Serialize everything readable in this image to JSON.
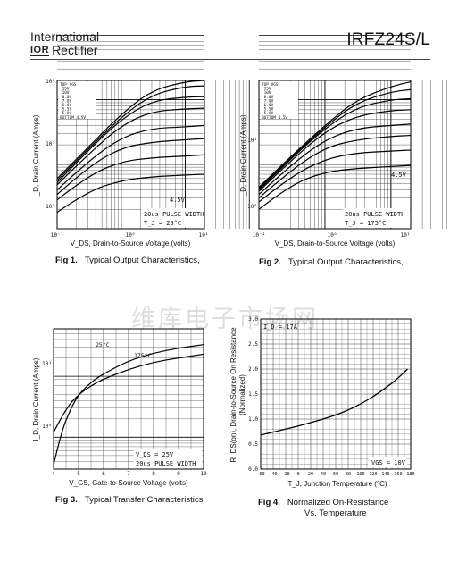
{
  "header": {
    "company_line1": "International",
    "company_logo": "IOR",
    "company_line2": "Rectifier",
    "part_number": "IRFZ24S/L"
  },
  "watermark": "维库电子市场网",
  "figures": {
    "fig1": {
      "num": "Fig 1.",
      "caption": "Typical Output Characteristics,",
      "ylabel": "I_D, Drain Current (Amps)",
      "xlabel": "V_DS, Drain-to-Source Voltage (volts)",
      "legend_title": [
        "TOP",
        "BOTTOM"
      ],
      "legend_values": [
        "VGS",
        "15V",
        "10V",
        "8.0V",
        "7.0V",
        "6.0V",
        "5.5V",
        "5.0V",
        "4.5V"
      ],
      "note1": "20us PULSE WIDTH",
      "note2": "T_J = 25°C",
      "curve_label": "4.5V",
      "xticks": [
        "10⁻¹",
        "10⁰",
        "10¹"
      ],
      "yticks": [
        "10⁰",
        "10¹",
        "10²"
      ]
    },
    "fig2": {
      "num": "Fig 2.",
      "caption": "Typical Output Characteristics,",
      "ylabel": "I_D, Drain Current (Amps)",
      "xlabel": "V_DS, Drain-to-Source Voltage (volts)",
      "legend_title": [
        "TOP",
        "BOTTOM"
      ],
      "legend_values": [
        "VGS",
        "15V",
        "10V",
        "8.0V",
        "7.0V",
        "6.0V",
        "5.5V",
        "5.0V",
        "4.5V"
      ],
      "note1": "20us PULSE WIDTH",
      "note2": "T_J = 175°C",
      "curve_label": "4.5V",
      "xticks": [
        "10⁻¹",
        "10⁰",
        "10¹"
      ],
      "yticks": [
        "10⁰",
        "10¹"
      ]
    },
    "fig3": {
      "num": "Fig 3.",
      "caption": "Typical Transfer Characteristics",
      "ylabel": "I_D, Drain Current (Amps)",
      "xlabel": "V_GS, Gate-to-Source Voltage (volts)",
      "note1": "V_DS = 25V",
      "note2": "20us PULSE WIDTH",
      "label_25": "25°C",
      "label_175": "175°C",
      "xticks": [
        "4",
        "5",
        "6",
        "7",
        "8",
        "9",
        "10"
      ],
      "yticks": [
        "10⁰",
        "10¹"
      ]
    },
    "fig4": {
      "num": "Fig 4.",
      "caption_line1": "Normalized On-Resistance",
      "caption_line2": "Vs. Temperature",
      "ylabel1": "R_DS(on), Drain-to-Source On Resistance",
      "ylabel2": "(Normalized)",
      "xlabel": "T_J, Junction Temperature (°C)",
      "id_note": "I_D = 17A",
      "vgs_note": "VGS = 10V",
      "xticks": [
        "-60",
        "-40",
        "-20",
        "0",
        "20",
        "40",
        "60",
        "80",
        "100",
        "120",
        "140",
        "160",
        "180"
      ],
      "yticks": [
        "0.0",
        "0.5",
        "1.0",
        "1.5",
        "2.0",
        "2.5",
        "3.0"
      ]
    }
  },
  "chart_data": [
    {
      "type": "line",
      "figure": "Fig 1.",
      "xscale": "log",
      "yscale": "log",
      "xlim": [
        0.1,
        20
      ],
      "ylim": [
        0.5,
        100
      ],
      "series": [
        {
          "name": "15V",
          "x": [
            0.1,
            0.3,
            1,
            3,
            10,
            20
          ],
          "y": [
            3,
            9,
            30,
            70,
            95,
            100
          ]
        },
        {
          "name": "10V",
          "x": [
            0.1,
            0.3,
            1,
            3,
            10,
            20
          ],
          "y": [
            2.8,
            8.5,
            27,
            60,
            80,
            82
          ]
        },
        {
          "name": "8.0V",
          "x": [
            0.1,
            0.3,
            1,
            3,
            10,
            20
          ],
          "y": [
            2.6,
            8,
            25,
            48,
            55,
            56
          ]
        },
        {
          "name": "7.0V",
          "x": [
            0.1,
            0.3,
            1,
            3,
            10,
            20
          ],
          "y": [
            2.4,
            7,
            20,
            33,
            36,
            37
          ]
        },
        {
          "name": "6.0V",
          "x": [
            0.1,
            0.3,
            1,
            3,
            10,
            20
          ],
          "y": [
            2,
            5.5,
            13,
            18,
            19,
            20
          ]
        },
        {
          "name": "5.5V",
          "x": [
            0.1,
            0.3,
            1,
            3,
            10,
            20
          ],
          "y": [
            1.7,
            4.5,
            9,
            11,
            12,
            12.5
          ]
        },
        {
          "name": "5.0V",
          "x": [
            0.1,
            0.3,
            1,
            3,
            10,
            20
          ],
          "y": [
            1.4,
            3.3,
            5.5,
            6.3,
            6.7,
            7
          ]
        },
        {
          "name": "4.5V",
          "x": [
            0.1,
            0.3,
            1,
            3,
            10,
            20
          ],
          "y": [
            0.9,
            1.9,
            2.8,
            3.2,
            3.4,
            3.5
          ]
        }
      ]
    },
    {
      "type": "line",
      "figure": "Fig 2.",
      "xscale": "log",
      "yscale": "log",
      "xlim": [
        0.1,
        20
      ],
      "ylim": [
        0.5,
        100
      ],
      "series": [
        {
          "name": "15V",
          "x": [
            0.1,
            0.3,
            1,
            3,
            10,
            20
          ],
          "y": [
            2.2,
            6.5,
            20,
            50,
            80,
            95
          ]
        },
        {
          "name": "10V",
          "x": [
            0.1,
            0.3,
            1,
            3,
            10,
            20
          ],
          "y": [
            2.1,
            6.2,
            19,
            45,
            66,
            72
          ]
        },
        {
          "name": "8.0V",
          "x": [
            0.1,
            0.3,
            1,
            3,
            10,
            20
          ],
          "y": [
            2,
            6,
            18,
            38,
            50,
            52
          ]
        },
        {
          "name": "7.0V",
          "x": [
            0.1,
            0.3,
            1,
            3,
            10,
            20
          ],
          "y": [
            1.9,
            5.6,
            16,
            28,
            34,
            35
          ]
        },
        {
          "name": "6.0V",
          "x": [
            0.1,
            0.3,
            1,
            3,
            10,
            20
          ],
          "y": [
            1.7,
            4.8,
            12,
            18,
            20,
            21
          ]
        },
        {
          "name": "5.5V",
          "x": [
            0.1,
            0.3,
            1,
            3,
            10,
            20
          ],
          "y": [
            1.5,
            4,
            9,
            12,
            13.5,
            14
          ]
        },
        {
          "name": "5.0V",
          "x": [
            0.1,
            0.3,
            1,
            3,
            10,
            20
          ],
          "y": [
            1.3,
            3.2,
            6,
            7.5,
            8,
            8.3
          ]
        },
        {
          "name": "4.5V",
          "x": [
            0.1,
            0.3,
            1,
            3,
            10,
            20
          ],
          "y": [
            1,
            2.4,
            3.8,
            4.3,
            4.6,
            4.8
          ]
        }
      ]
    },
    {
      "type": "line",
      "figure": "Fig 3.",
      "yscale": "log",
      "xlim": [
        4,
        10
      ],
      "ylim": [
        0.3,
        60
      ],
      "series": [
        {
          "name": "25°C",
          "x": [
            4,
            4.3,
            4.7,
            5,
            5.5,
            6,
            7,
            8,
            9,
            10
          ],
          "y": [
            0.35,
            1.2,
            3,
            5,
            8,
            11,
            18,
            24,
            29,
            33
          ]
        },
        {
          "name": "175°C",
          "x": [
            4,
            4.5,
            5,
            5.5,
            6,
            7,
            8,
            9,
            10
          ],
          "y": [
            1.2,
            3,
            5,
            7,
            9,
            13,
            17,
            20,
            23
          ]
        }
      ]
    },
    {
      "type": "line",
      "figure": "Fig 4.",
      "xlim": [
        -60,
        180
      ],
      "ylim": [
        0,
        3
      ],
      "x": [
        -60,
        -40,
        -20,
        0,
        20,
        40,
        60,
        80,
        100,
        120,
        140,
        160,
        175
      ],
      "series": [
        {
          "values": [
            0.68,
            0.74,
            0.8,
            0.86,
            0.93,
            1.0,
            1.08,
            1.18,
            1.3,
            1.45,
            1.62,
            1.82,
            2.0
          ]
        }
      ]
    }
  ]
}
